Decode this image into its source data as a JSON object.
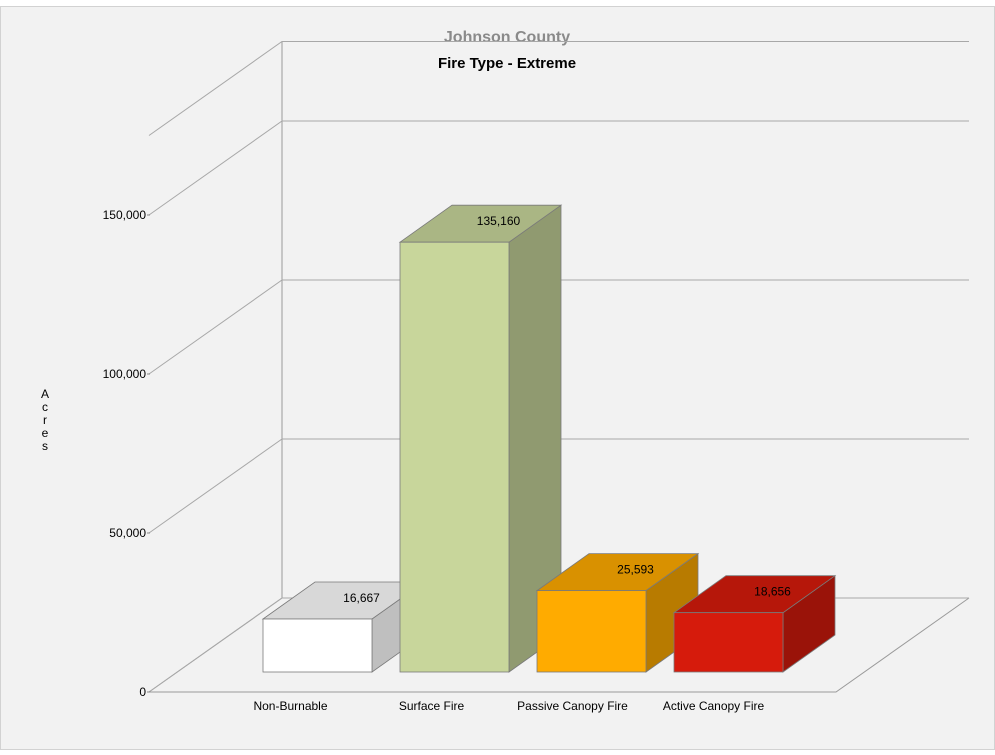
{
  "chart_data": {
    "type": "bar",
    "title": "Johnson County",
    "subtitle": "Fire Type - Extreme",
    "xlabel": "",
    "ylabel": "Acres",
    "ylim": [
      0,
      175000
    ],
    "ticks": [
      {
        "value": 0,
        "label": "0"
      },
      {
        "value": 50000,
        "label": "50,000"
      },
      {
        "value": 100000,
        "label": "100,000"
      },
      {
        "value": 150000,
        "label": "150,000"
      }
    ],
    "grid": true,
    "legend": "none",
    "categories": [
      "Non-Burnable",
      "Surface Fire",
      "Passive Canopy Fire",
      "Active Canopy Fire"
    ],
    "values": [
      16667,
      135160,
      25593,
      18656
    ],
    "value_labels": [
      "16,667",
      "135,160",
      "25,593",
      "18,656"
    ],
    "colors": [
      "#ffffff",
      "#c8d69b",
      "#ffab00",
      "#d61b0c"
    ]
  }
}
